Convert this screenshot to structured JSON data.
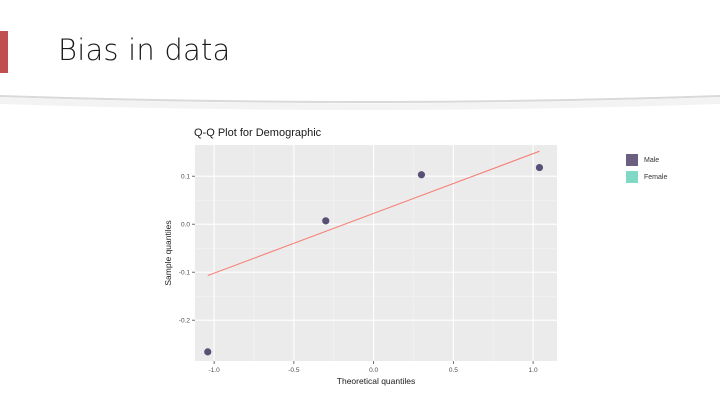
{
  "slide": {
    "title": "Bias in data",
    "accent_color": "#c0504d"
  },
  "chart_data": {
    "type": "scatter",
    "title": "Q-Q Plot for Demographic",
    "xlabel": "Theoretical quantiles",
    "ylabel": "Sample quantiles",
    "xlim": [
      -1.12,
      1.15
    ],
    "ylim": [
      -0.285,
      0.165
    ],
    "x_ticks": [
      -1.0,
      -0.5,
      0.0,
      0.5,
      1.0
    ],
    "x_tick_labels": [
      "-1.0",
      "-0.5",
      "0.0",
      "0.5",
      "1.0"
    ],
    "y_ticks": [
      -0.2,
      -0.1,
      0.0,
      0.1
    ],
    "y_tick_labels": [
      "-0.2",
      "-0.1",
      "0.0",
      "0.1"
    ],
    "points": [
      {
        "x": -1.04,
        "y": -0.266
      },
      {
        "x": -0.3,
        "y": 0.007
      },
      {
        "x": 0.3,
        "y": 0.103
      },
      {
        "x": 1.04,
        "y": 0.118
      }
    ],
    "reference_line": {
      "x": [
        -1.04,
        1.04
      ],
      "y": [
        -0.107,
        0.152
      ],
      "color": "#f8766d"
    },
    "point_color": "#5a4f75",
    "panel_background": "#ebebeb",
    "grid": true,
    "legend": {
      "placement": "right",
      "entries": [
        {
          "label": "Male",
          "color": "#6b5f80"
        },
        {
          "label": "Female",
          "color": "#7fd9c4"
        }
      ]
    }
  }
}
